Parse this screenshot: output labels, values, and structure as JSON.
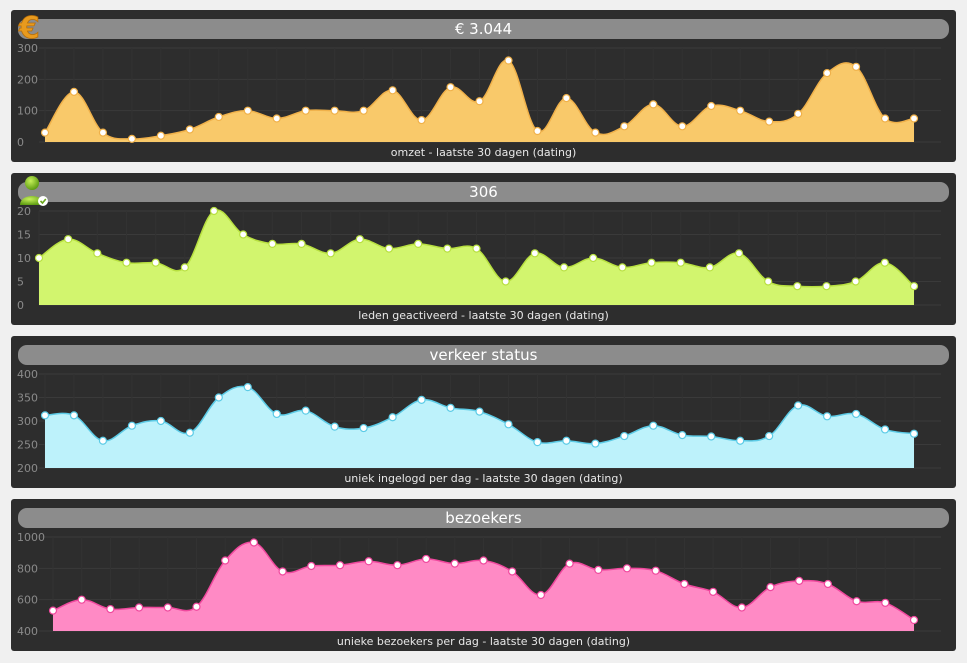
{
  "chart_data": [
    {
      "type": "area",
      "title": "€ 3.044",
      "xlabel": "omzet - laatste 30 dagen (dating)",
      "ylabel": "",
      "ylim": [
        0,
        300
      ],
      "yticks": [
        0,
        100,
        200,
        300
      ],
      "values": [
        30,
        160,
        30,
        10,
        20,
        40,
        80,
        100,
        75,
        100,
        100,
        100,
        165,
        70,
        175,
        130,
        260,
        35,
        140,
        30,
        50,
        120,
        50,
        115,
        100,
        65,
        90,
        220,
        240,
        75,
        75
      ],
      "fill": "#f9c96a",
      "stroke": "#f0b14a",
      "icon": "euro-icon"
    },
    {
      "type": "area",
      "title": "306",
      "xlabel": "leden geactiveerd - laatste 30 dagen (dating)",
      "ylabel": "",
      "ylim": [
        0,
        20
      ],
      "yticks": [
        0,
        5,
        10,
        15,
        20
      ],
      "values": [
        10,
        14,
        11,
        9,
        9,
        8,
        20,
        15,
        13,
        13,
        11,
        14,
        12,
        13,
        12,
        12,
        5,
        11,
        8,
        10,
        8,
        9,
        9,
        8,
        11,
        5,
        4,
        4,
        5,
        9,
        4
      ],
      "fill": "#d2f56e",
      "stroke": "#b8e040",
      "icon": "user-icon"
    },
    {
      "type": "area",
      "title": "verkeer status",
      "xlabel": "uniek ingelogd per dag - laatste 30 dagen (dating)",
      "ylabel": "",
      "ylim": [
        200,
        400
      ],
      "yticks": [
        200,
        250,
        300,
        350,
        400
      ],
      "values": [
        312,
        312,
        258,
        290,
        300,
        275,
        350,
        372,
        315,
        322,
        288,
        285,
        308,
        345,
        328,
        320,
        293,
        255,
        258,
        252,
        268,
        290,
        270,
        267,
        258,
        268,
        333,
        310,
        315,
        282,
        273
      ],
      "fill": "#bdf2fb",
      "stroke": "#5ccbe6",
      "icon": ""
    },
    {
      "type": "area",
      "title": "bezoekers",
      "xlabel": "unieke bezoekers per dag - laatste 30 dagen (dating)",
      "ylabel": "",
      "ylim": [
        400,
        1000
      ],
      "yticks": [
        400,
        600,
        800,
        1000
      ],
      "values": [
        530,
        600,
        540,
        550,
        550,
        555,
        850,
        965,
        780,
        815,
        820,
        845,
        820,
        860,
        830,
        850,
        780,
        630,
        830,
        790,
        800,
        785,
        700,
        650,
        550,
        680,
        720,
        700,
        590,
        580,
        470
      ],
      "fill": "#ff8ac5",
      "stroke": "#f0489e",
      "icon": ""
    }
  ]
}
